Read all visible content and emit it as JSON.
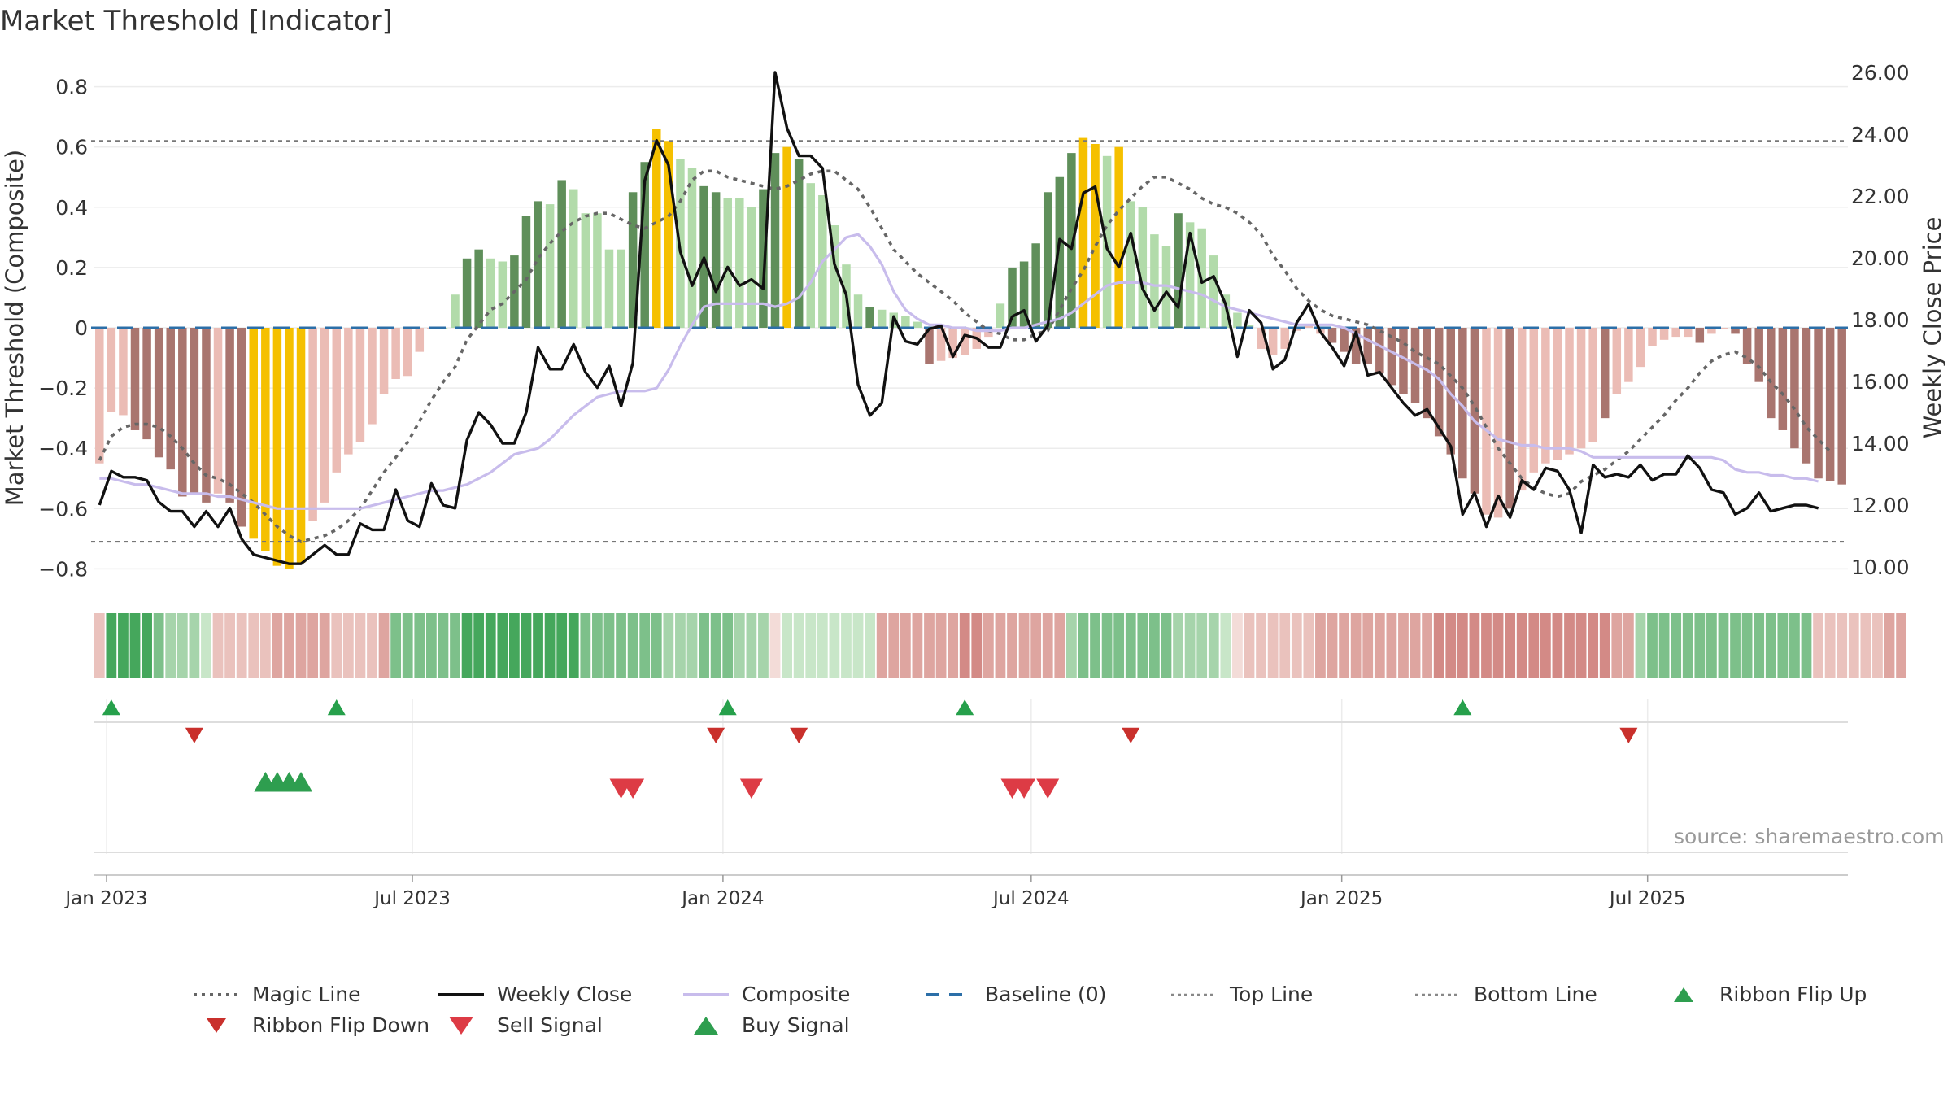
{
  "title": "Market Threshold [Indicator]",
  "source": "source: sharemaestro.com",
  "colors": {
    "green_dark": "#5f8f5a",
    "green_light": "#b2dbaa",
    "red_dark": "#a9756f",
    "red_light": "#ebbcb5",
    "gold": "#f5c000",
    "weekly_close": "#111111",
    "composite": "#c8bcec",
    "magic_line": "#666666",
    "baseline": "#2c6fa8",
    "top_bottom": "#777777",
    "buy": "#2e9e4f",
    "sell": "#dd3b45"
  },
  "chart_data": {
    "type": "bar",
    "title": "Market Threshold [Indicator]",
    "ylabel": "Market Threshold (Composite)",
    "y2label": "Weekly Close Price",
    "ylim": [
      -0.85,
      0.82
    ],
    "y2lim": [
      9.5,
      26.4
    ],
    "yticks": [
      "−0.8",
      "−0.6",
      "−0.4",
      "−0.2",
      "0",
      "0.2",
      "0.4",
      "0.6",
      "0.8"
    ],
    "y2ticks": [
      "10.00",
      "12.00",
      "14.00",
      "16.00",
      "18.00",
      "20.00",
      "22.00",
      "24.00",
      "26.00"
    ],
    "xticks": [
      "Jan 2023",
      "Jul 2023",
      "Jan 2024",
      "Jul 2024",
      "Jan 2025",
      "Jul 2025"
    ],
    "top_line": 0.62,
    "bottom_line": -0.71,
    "baseline": 0,
    "grid": true,
    "legend": "bottom",
    "series_names": [
      "Magic Line",
      "Weekly Close",
      "Composite",
      "Baseline (0)",
      "Top Line",
      "Bottom Line",
      "Ribbon Flip Up",
      "Ribbon Flip Down",
      "Sell Signal",
      "Buy Signal"
    ],
    "histogram": [
      -0.45,
      -0.28,
      -0.29,
      -0.34,
      -0.37,
      -0.43,
      -0.47,
      -0.56,
      -0.55,
      -0.58,
      -0.55,
      -0.58,
      -0.66,
      -0.7,
      -0.74,
      -0.79,
      -0.8,
      -0.78,
      -0.64,
      -0.58,
      -0.48,
      -0.42,
      -0.38,
      -0.32,
      -0.22,
      -0.17,
      -0.16,
      -0.08,
      0.0,
      0.0,
      0.11,
      0.23,
      0.26,
      0.23,
      0.22,
      0.24,
      0.37,
      0.42,
      0.41,
      0.49,
      0.46,
      0.38,
      0.38,
      0.26,
      0.26,
      0.45,
      0.55,
      0.66,
      0.62,
      0.56,
      0.53,
      0.47,
      0.45,
      0.43,
      0.43,
      0.4,
      0.46,
      0.58,
      0.6,
      0.56,
      0.48,
      0.44,
      0.34,
      0.21,
      0.11,
      0.07,
      0.06,
      0.05,
      0.04,
      0.02,
      -0.12,
      -0.11,
      -0.1,
      -0.09,
      -0.07,
      -0.03,
      0.08,
      0.2,
      0.22,
      0.28,
      0.45,
      0.5,
      0.58,
      0.63,
      0.61,
      0.57,
      0.6,
      0.42,
      0.4,
      0.31,
      0.27,
      0.38,
      0.35,
      0.33,
      0.24,
      0.11,
      0.05,
      0.01,
      -0.07,
      -0.09,
      -0.07,
      -0.01,
      0.01,
      -0.02,
      -0.05,
      -0.08,
      -0.12,
      -0.12,
      -0.15,
      -0.19,
      -0.22,
      -0.25,
      -0.3,
      -0.36,
      -0.42,
      -0.5,
      -0.55,
      -0.62,
      -0.63,
      -0.6,
      -0.54,
      -0.48,
      -0.45,
      -0.44,
      -0.42,
      -0.4,
      -0.38,
      -0.3,
      -0.22,
      -0.18,
      -0.13,
      -0.06,
      -0.04,
      -0.03,
      -0.03,
      -0.05,
      -0.02,
      0.0,
      -0.02,
      -0.12,
      -0.18,
      -0.3,
      -0.34,
      -0.4,
      -0.45,
      -0.5,
      -0.51,
      -0.52
    ],
    "hist_color": [
      "rl",
      "rl",
      "rl",
      "rd",
      "rd",
      "rd",
      "rd",
      "rd",
      "rd",
      "rd",
      "rl",
      "rd",
      "rd",
      "g",
      "g",
      "g",
      "g",
      "g",
      "rl",
      "rl",
      "rl",
      "rl",
      "rl",
      "rl",
      "rl",
      "rl",
      "rl",
      "rl",
      "rl",
      "gl",
      "gl",
      "gd",
      "gd",
      "gl",
      "gl",
      "gd",
      "gd",
      "gd",
      "gl",
      "gd",
      "gl",
      "gl",
      "gl",
      "gl",
      "gl",
      "gd",
      "gd",
      "g",
      "g",
      "gl",
      "gl",
      "gd",
      "gd",
      "gl",
      "gl",
      "gl",
      "gd",
      "gd",
      "g",
      "gd",
      "gl",
      "gl",
      "gl",
      "gl",
      "gl",
      "gd",
      "gl",
      "gl",
      "gl",
      "gl",
      "rd",
      "rl",
      "rl",
      "rl",
      "rl",
      "rl",
      "gl",
      "gd",
      "gd",
      "gd",
      "gd",
      "gd",
      "gd",
      "g",
      "g",
      "gl",
      "g",
      "gl",
      "gl",
      "gl",
      "gl",
      "gd",
      "gl",
      "gl",
      "gl",
      "gl",
      "gl",
      "gl",
      "rl",
      "rl",
      "rl",
      "rl",
      "rl",
      "rl",
      "rd",
      "rd",
      "rd",
      "rd",
      "rd",
      "rd",
      "rd",
      "rd",
      "rd",
      "rd",
      "rd",
      "rd",
      "rd",
      "rl",
      "rl",
      "rd",
      "rl",
      "rl",
      "rl",
      "rl",
      "rl",
      "rl",
      "rl",
      "rd",
      "rl",
      "rl",
      "rl",
      "rl",
      "rl",
      "rl",
      "rl",
      "rd",
      "rl",
      "rl",
      "rd",
      "rd",
      "rd",
      "rd",
      "rd",
      "rd",
      "rd",
      "rd",
      "rd",
      "rd",
      "rd"
    ],
    "weekly_close": [
      12.0,
      13.1,
      12.9,
      12.9,
      12.8,
      12.1,
      11.8,
      11.8,
      11.3,
      11.8,
      11.3,
      11.9,
      10.9,
      10.4,
      10.3,
      10.2,
      10.1,
      10.1,
      10.4,
      10.7,
      10.4,
      10.4,
      11.4,
      11.2,
      11.2,
      12.5,
      11.5,
      11.3,
      12.7,
      12.0,
      11.9,
      14.1,
      15.0,
      14.6,
      14.0,
      14.0,
      15.0,
      17.1,
      16.4,
      16.4,
      17.2,
      16.3,
      15.8,
      16.5,
      15.2,
      16.6,
      22.5,
      23.8,
      23.0,
      20.2,
      19.1,
      20.0,
      18.9,
      19.7,
      19.1,
      19.3,
      19.0,
      26.0,
      24.2,
      23.3,
      23.3,
      22.9,
      19.8,
      18.8,
      15.9,
      14.9,
      15.3,
      18.1,
      17.3,
      17.2,
      17.7,
      17.8,
      16.8,
      17.5,
      17.4,
      17.1,
      17.1,
      18.1,
      18.3,
      17.3,
      17.8,
      20.6,
      20.3,
      22.1,
      22.3,
      20.3,
      19.7,
      20.8,
      19.0,
      18.3,
      18.9,
      18.4,
      20.8,
      19.2,
      19.4,
      18.5,
      16.8,
      18.3,
      17.9,
      16.4,
      16.7,
      17.9,
      18.5,
      17.6,
      17.1,
      16.5,
      17.6,
      16.2,
      16.3,
      15.8,
      15.3,
      14.9,
      15.1,
      14.5,
      13.9,
      11.7,
      12.4,
      11.3,
      12.3,
      11.6,
      12.8,
      12.5,
      13.2,
      13.1,
      12.5,
      11.1,
      13.3,
      12.9,
      13.0,
      12.9,
      13.3,
      12.8,
      13.0,
      13.0,
      13.6,
      13.2,
      12.5,
      12.4,
      11.7,
      11.9,
      12.4,
      11.8,
      11.9,
      12.0,
      12.0,
      11.9
    ],
    "composite": [
      -0.5,
      -0.5,
      -0.51,
      -0.52,
      -0.52,
      -0.53,
      -0.54,
      -0.55,
      -0.55,
      -0.55,
      -0.56,
      -0.56,
      -0.57,
      -0.58,
      -0.59,
      -0.6,
      -0.6,
      -0.6,
      -0.6,
      -0.6,
      -0.6,
      -0.6,
      -0.6,
      -0.59,
      -0.58,
      -0.57,
      -0.56,
      -0.55,
      -0.54,
      -0.54,
      -0.53,
      -0.52,
      -0.5,
      -0.48,
      -0.45,
      -0.42,
      -0.41,
      -0.4,
      -0.37,
      -0.33,
      -0.29,
      -0.26,
      -0.23,
      -0.22,
      -0.21,
      -0.21,
      -0.21,
      -0.2,
      -0.14,
      -0.06,
      0.01,
      0.07,
      0.08,
      0.08,
      0.08,
      0.08,
      0.08,
      0.07,
      0.08,
      0.1,
      0.15,
      0.22,
      0.26,
      0.3,
      0.31,
      0.27,
      0.21,
      0.12,
      0.06,
      0.03,
      0.01,
      0.01,
      0.0,
      0.0,
      -0.01,
      -0.01,
      -0.01,
      0.0,
      0.0,
      0.01,
      0.02,
      0.03,
      0.05,
      0.08,
      0.11,
      0.14,
      0.15,
      0.15,
      0.15,
      0.14,
      0.14,
      0.13,
      0.12,
      0.11,
      0.09,
      0.07,
      0.06,
      0.05,
      0.04,
      0.03,
      0.02,
      0.01,
      0.01,
      0.01,
      0.01,
      0.0,
      -0.02,
      -0.04,
      -0.06,
      -0.08,
      -0.1,
      -0.12,
      -0.14,
      -0.17,
      -0.22,
      -0.26,
      -0.31,
      -0.34,
      -0.37,
      -0.38,
      -0.39,
      -0.39,
      -0.4,
      -0.4,
      -0.4,
      -0.41,
      -0.43,
      -0.43,
      -0.43,
      -0.43,
      -0.43,
      -0.43,
      -0.43,
      -0.43,
      -0.43,
      -0.43,
      -0.43,
      -0.44,
      -0.47,
      -0.48,
      -0.48,
      -0.49,
      -0.49,
      -0.5,
      -0.5,
      -0.51
    ],
    "magic_line": [
      -0.44,
      -0.36,
      -0.33,
      -0.32,
      -0.32,
      -0.33,
      -0.36,
      -0.4,
      -0.45,
      -0.49,
      -0.5,
      -0.52,
      -0.55,
      -0.58,
      -0.62,
      -0.66,
      -0.69,
      -0.71,
      -0.7,
      -0.69,
      -0.67,
      -0.64,
      -0.6,
      -0.54,
      -0.48,
      -0.43,
      -0.38,
      -0.31,
      -0.24,
      -0.18,
      -0.13,
      -0.04,
      0.01,
      0.06,
      0.08,
      0.12,
      0.16,
      0.23,
      0.28,
      0.32,
      0.35,
      0.37,
      0.38,
      0.38,
      0.36,
      0.34,
      0.33,
      0.35,
      0.37,
      0.42,
      0.49,
      0.52,
      0.52,
      0.5,
      0.49,
      0.48,
      0.47,
      0.46,
      0.47,
      0.49,
      0.51,
      0.52,
      0.52,
      0.49,
      0.46,
      0.4,
      0.33,
      0.26,
      0.22,
      0.18,
      0.15,
      0.12,
      0.09,
      0.05,
      0.02,
      -0.01,
      -0.02,
      -0.04,
      -0.04,
      -0.02,
      -0.01,
      0.06,
      0.13,
      0.19,
      0.27,
      0.34,
      0.39,
      0.43,
      0.47,
      0.5,
      0.5,
      0.48,
      0.46,
      0.43,
      0.41,
      0.4,
      0.38,
      0.35,
      0.31,
      0.24,
      0.19,
      0.13,
      0.09,
      0.06,
      0.04,
      0.03,
      0.02,
      0.01,
      -0.01,
      -0.03,
      -0.05,
      -0.08,
      -0.1,
      -0.12,
      -0.16,
      -0.2,
      -0.26,
      -0.33,
      -0.4,
      -0.45,
      -0.5,
      -0.53,
      -0.55,
      -0.56,
      -0.55,
      -0.51,
      -0.49,
      -0.47,
      -0.44,
      -0.41,
      -0.37,
      -0.33,
      -0.29,
      -0.24,
      -0.2,
      -0.15,
      -0.11,
      -0.09,
      -0.08,
      -0.1,
      -0.13,
      -0.18,
      -0.22,
      -0.27,
      -0.33,
      -0.37,
      -0.41
    ],
    "ribbon": [
      "rl",
      "g",
      "g",
      "g",
      "g",
      "gm",
      "gl",
      "gl",
      "gl",
      "gxl",
      "rl",
      "rl",
      "rl",
      "rl",
      "rl",
      "rm",
      "rm",
      "rm",
      "rm",
      "rm",
      "rl",
      "rl",
      "rl",
      "rl",
      "rm",
      "gm",
      "gm",
      "gm",
      "gm",
      "gm",
      "gm",
      "g",
      "g",
      "g",
      "g",
      "g",
      "g",
      "g",
      "g",
      "g",
      "g",
      "gm",
      "gm",
      "gm",
      "gm",
      "gm",
      "gm",
      "gm",
      "gl",
      "gl",
      "gl",
      "gm",
      "gm",
      "gm",
      "gl",
      "gl",
      "gl",
      "rxl",
      "gxl",
      "gxl",
      "gxl",
      "gxl",
      "gxl",
      "gxl",
      "gxl",
      "gxl",
      "rm",
      "rm",
      "rm",
      "rm",
      "rm",
      "rm",
      "rm",
      "r",
      "r",
      "rm",
      "rm",
      "rm",
      "rm",
      "rm",
      "rm",
      "rm",
      "gl",
      "gm",
      "gm",
      "gm",
      "gm",
      "gm",
      "gm",
      "gm",
      "gm",
      "gl",
      "gl",
      "gl",
      "gl",
      "gxl",
      "rxl",
      "rl",
      "rl",
      "rl",
      "rl",
      "rl",
      "rl",
      "rm",
      "rm",
      "rm",
      "rm",
      "rm",
      "rm",
      "rm",
      "rm",
      "rm",
      "rm",
      "r",
      "r",
      "r",
      "r",
      "r",
      "r",
      "r",
      "r",
      "r",
      "r",
      "r",
      "r",
      "r",
      "r",
      "r",
      "rm",
      "rm",
      "gl",
      "gm",
      "gm",
      "gm",
      "gm",
      "gm",
      "gm",
      "gm",
      "gm",
      "gm",
      "gm",
      "gm",
      "gm",
      "gm",
      "gm",
      "rl",
      "rl",
      "rl",
      "rl",
      "rl",
      "rl",
      "rm",
      "rm"
    ],
    "ribbon_flip_up": [
      1,
      20,
      53,
      73,
      115
    ],
    "ribbon_flip_down": [
      8,
      52,
      59,
      87,
      129
    ],
    "buy_signals": [
      14,
      15,
      16,
      17
    ],
    "sell_signals": [
      44,
      45,
      55,
      77,
      78,
      80
    ]
  },
  "legend": {
    "magic_line": "Magic Line",
    "weekly_close": "Weekly Close",
    "composite": "Composite",
    "baseline": "Baseline (0)",
    "top_line": "Top Line",
    "bottom_line": "Bottom Line",
    "ribbon_flip_up": "Ribbon Flip Up",
    "ribbon_flip_down": "Ribbon Flip Down",
    "sell_signal": "Sell Signal",
    "buy_signal": "Buy Signal"
  }
}
